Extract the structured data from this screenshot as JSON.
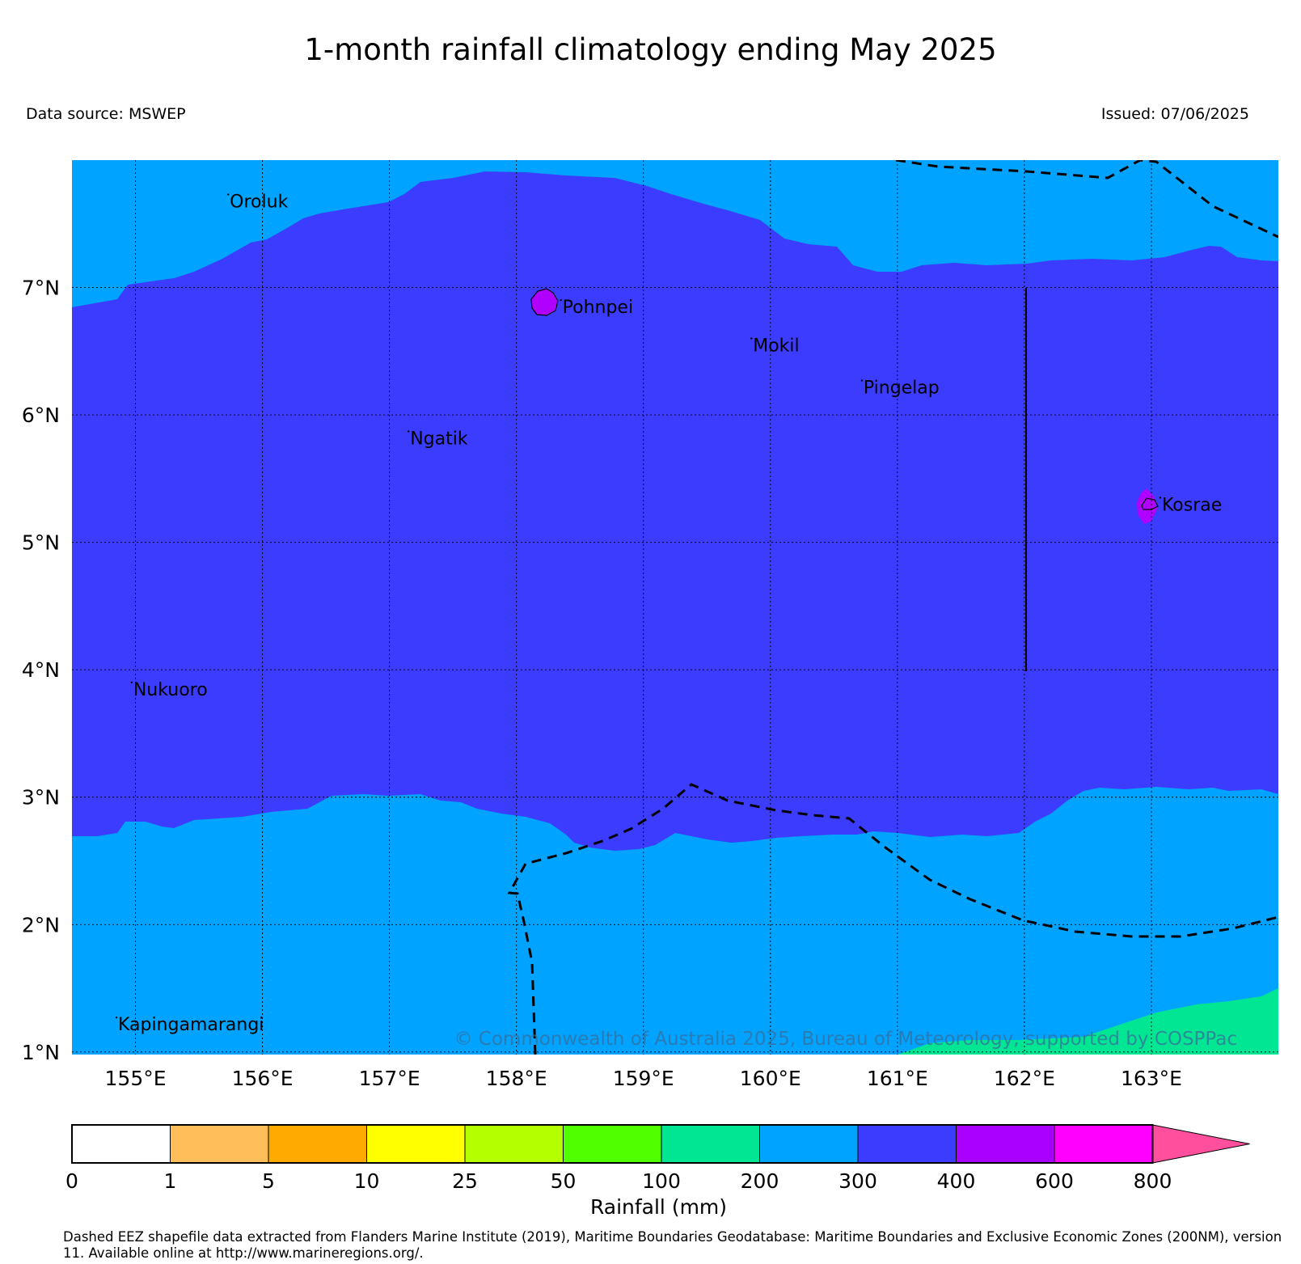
{
  "title": "1-month rainfall climatology ending May 2025",
  "data_source": "Data source: MSWEP",
  "issued": "Issued: 07/06/2025",
  "map": {
    "lon_range": [
      154.5,
      164.0
    ],
    "lat_range": [
      0.98,
      8.0
    ],
    "lon_ticks": [
      "155°E",
      "156°E",
      "157°E",
      "158°E",
      "159°E",
      "160°E",
      "161°E",
      "162°E",
      "163°E"
    ],
    "lat_ticks": [
      "1°N",
      "2°N",
      "3°N",
      "4°N",
      "5°N",
      "6°N",
      "7°N"
    ],
    "places": [
      {
        "name": "Oroluk",
        "lon": 155.73,
        "lat": 7.68
      },
      {
        "name": "Pohnpei",
        "lon": 158.35,
        "lat": 6.85
      },
      {
        "name": "Mokil",
        "lon": 159.85,
        "lat": 6.55
      },
      {
        "name": "Pingelap",
        "lon": 160.72,
        "lat": 6.22
      },
      {
        "name": "Ngatik",
        "lon": 157.15,
        "lat": 5.82
      },
      {
        "name": "Kosrae",
        "lon": 163.07,
        "lat": 5.3
      },
      {
        "name": "Nukuoro",
        "lon": 154.97,
        "lat": 3.85
      },
      {
        "name": "Kapingamarangi",
        "lon": 154.85,
        "lat": 1.22
      }
    ],
    "copyright": "© Commonwealth of Australia 2025, Bureau of Meteorology, supported by COSPPac",
    "background_color": "#00a3ff",
    "band_color": "#3c3cff",
    "island_color": "#b000ff",
    "low_color": "#00e693"
  },
  "colorbar": {
    "title": "Rainfall (mm)",
    "ticks": [
      "0",
      "1",
      "5",
      "10",
      "25",
      "50",
      "100",
      "200",
      "300",
      "400",
      "600",
      "800"
    ],
    "colors": [
      "#ffffff",
      "#ffbe5a",
      "#ffaa00",
      "#ffff00",
      "#b4ff00",
      "#50ff00",
      "#00e693",
      "#00a3ff",
      "#3c3cff",
      "#aa00ff",
      "#ff00ff",
      "#ff4f9d"
    ]
  },
  "footnote": "Dashed EEZ shapefile data extracted from Flanders Marine Institute (2019), Maritime Boundaries Geodatabase: Maritime Boundaries and Exclusive Economic Zones (200NM), version 11. Available online at http://www.marineregions.org/."
}
